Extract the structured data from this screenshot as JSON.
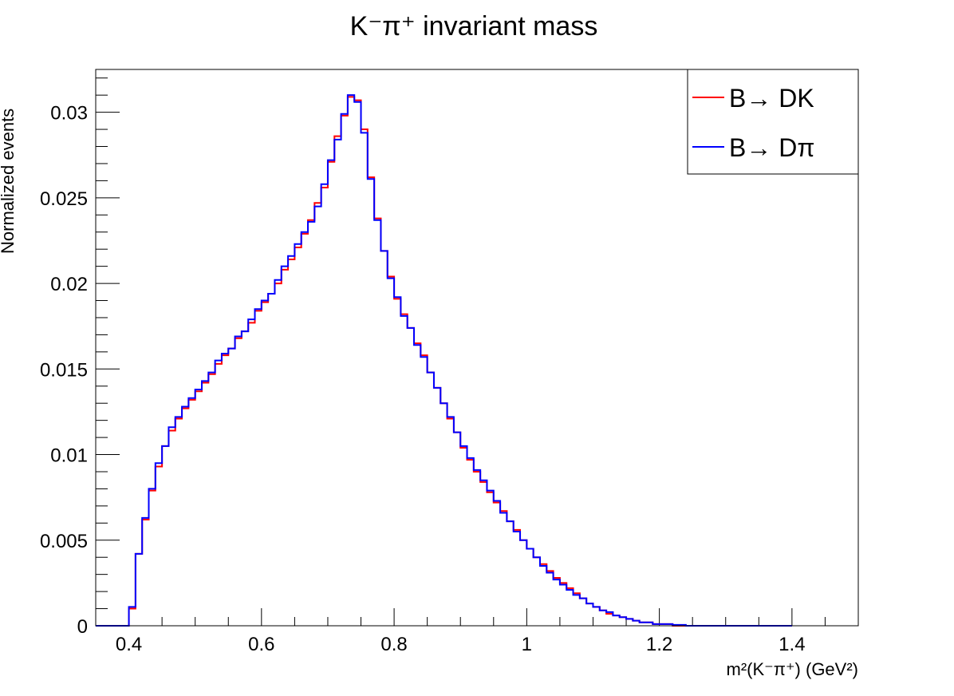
{
  "chart_data": {
    "type": "line",
    "title": "K⁻π⁺ invariant mass",
    "xlabel": "m²(K⁻π⁺) (GeV²)",
    "ylabel": "Normalized events",
    "xlim": [
      0.35,
      1.5
    ],
    "ylim": [
      0,
      0.0325
    ],
    "x_ticks": [
      0.4,
      0.6,
      0.8,
      1.0,
      1.2,
      1.4
    ],
    "x_tick_labels": [
      "0.4",
      "0.6",
      "0.8",
      "1",
      "1.2",
      "1.4"
    ],
    "y_ticks": [
      0,
      0.005,
      0.01,
      0.015,
      0.02,
      0.025,
      0.03
    ],
    "y_tick_labels": [
      "0",
      "0.005",
      "0.01",
      "0.015",
      "0.02",
      "0.025",
      "0.03"
    ],
    "grid": false,
    "legend_position": "top-right",
    "histogram": true,
    "bin_start": 0.35,
    "bin_width": 0.01,
    "series": [
      {
        "name": "B→ DK",
        "color": "#ff0000",
        "values": [
          0,
          0,
          0,
          0,
          0,
          0.001,
          0.0042,
          0.0062,
          0.0079,
          0.0093,
          0.0105,
          0.0114,
          0.0121,
          0.0127,
          0.0132,
          0.0137,
          0.0142,
          0.0147,
          0.0153,
          0.0158,
          0.0162,
          0.0168,
          0.0172,
          0.0177,
          0.0184,
          0.0189,
          0.0194,
          0.02,
          0.0208,
          0.0214,
          0.0221,
          0.0229,
          0.0237,
          0.0247,
          0.0256,
          0.0271,
          0.0286,
          0.0298,
          0.0309,
          0.0307,
          0.029,
          0.0262,
          0.0238,
          0.0219,
          0.0204,
          0.0191,
          0.0182,
          0.0174,
          0.0165,
          0.0158,
          0.0148,
          0.0139,
          0.013,
          0.0121,
          0.0113,
          0.0104,
          0.0097,
          0.009,
          0.0084,
          0.0078,
          0.0072,
          0.0067,
          0.0061,
          0.0056,
          0.005,
          0.0045,
          0.004,
          0.0036,
          0.0032,
          0.0028,
          0.0025,
          0.0022,
          0.0019,
          0.0016,
          0.0013,
          0.0011,
          0.0009,
          0.0007,
          0.0006,
          0.0005,
          0.0004,
          0.0003,
          0.0002,
          0.0002,
          0.0001,
          0.0001,
          0.0001,
          0,
          0,
          0,
          0,
          0,
          0,
          0,
          0,
          0,
          0,
          0,
          0,
          0,
          0,
          0,
          0,
          0,
          0
        ]
      },
      {
        "name": "B→ Dπ",
        "color": "#0000ff",
        "values": [
          0,
          0,
          0,
          0,
          0,
          0.0011,
          0.0042,
          0.0063,
          0.008,
          0.0095,
          0.0105,
          0.0116,
          0.0122,
          0.0128,
          0.0133,
          0.0138,
          0.0143,
          0.0148,
          0.0155,
          0.0159,
          0.0162,
          0.0169,
          0.0172,
          0.0179,
          0.0185,
          0.019,
          0.0194,
          0.0202,
          0.021,
          0.0216,
          0.0223,
          0.023,
          0.0236,
          0.0245,
          0.0258,
          0.0272,
          0.0284,
          0.0299,
          0.031,
          0.0306,
          0.0288,
          0.0261,
          0.0237,
          0.0219,
          0.0203,
          0.0192,
          0.0181,
          0.0174,
          0.0164,
          0.0157,
          0.0148,
          0.0139,
          0.013,
          0.0122,
          0.0113,
          0.0105,
          0.0098,
          0.0091,
          0.0085,
          0.0079,
          0.0073,
          0.0066,
          0.0061,
          0.0055,
          0.005,
          0.0045,
          0.004,
          0.0035,
          0.0031,
          0.0027,
          0.0024,
          0.0021,
          0.0018,
          0.0016,
          0.0013,
          0.0011,
          0.0009,
          0.0008,
          0.0006,
          0.0005,
          0.0004,
          0.0003,
          0.0002,
          0.0002,
          0.0001,
          0.0001,
          0.0001,
          5e-05,
          5e-05,
          0,
          0,
          0,
          0,
          0,
          0,
          0,
          0,
          0,
          0,
          0,
          0,
          0,
          0,
          0,
          0
        ]
      }
    ]
  }
}
